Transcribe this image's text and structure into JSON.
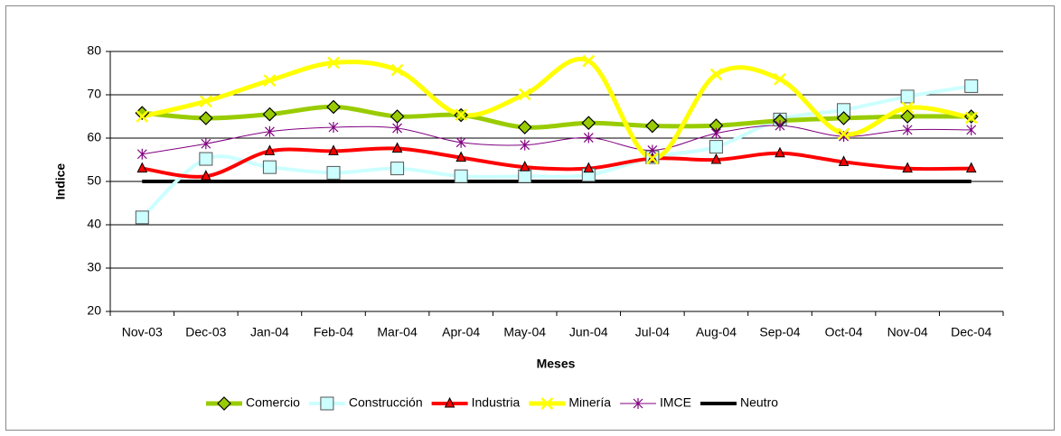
{
  "chart_data": {
    "type": "line",
    "smooth": true,
    "x_label": "Meses",
    "y_label": "Indice",
    "categories": [
      "Nov-03",
      "Dec-03",
      "Jan-04",
      "Feb-04",
      "Mar-04",
      "Apr-04",
      "May-04",
      "Jun-04",
      "Jul-04",
      "Aug-04",
      "Sep-04",
      "Oct-04",
      "Nov-04",
      "Dec-04"
    ],
    "ylim": [
      20,
      80
    ],
    "yticks": [
      20,
      30,
      40,
      50,
      60,
      70,
      80
    ],
    "grid": true,
    "legend": "bottom",
    "series": [
      {
        "name": "Comercio",
        "color": "#99cc00",
        "marker": "diamond",
        "marker_fill": "#99cc00",
        "width": 5,
        "values": [
          65.8,
          64.6,
          65.5,
          67.2,
          65,
          65.3,
          62.5,
          63.5,
          62.8,
          62.9,
          64,
          64.6,
          65,
          65
        ]
      },
      {
        "name": "Construcción",
        "color": "#ccffff",
        "marker": "square",
        "marker_fill": "#ccffff",
        "width": 4,
        "values": [
          41.7,
          55.2,
          53.3,
          52,
          53,
          51.2,
          51.2,
          51.5,
          55.6,
          58,
          64.3,
          66.5,
          69.6,
          72
        ]
      },
      {
        "name": "Industria",
        "color": "#ff0000",
        "marker": "triangle",
        "marker_fill": "#ff0000",
        "width": 4,
        "values": [
          53,
          51.2,
          57,
          57,
          57.6,
          55.5,
          53.3,
          53,
          55.3,
          55,
          56.5,
          54.5,
          53,
          53
        ]
      },
      {
        "name": "Minería",
        "color": "#ffff00",
        "marker": "x",
        "marker_fill": "#ffff00",
        "width": 5,
        "values": [
          65,
          68.5,
          73.3,
          77.4,
          75.7,
          65.4,
          70.1,
          77.8,
          55.3,
          74.7,
          73.6,
          61,
          67,
          64.7
        ]
      },
      {
        "name": "IMCE",
        "color": "#800080",
        "marker": "star",
        "marker_fill": "#800080",
        "width": 1,
        "values": [
          56.3,
          58.7,
          61.5,
          62.5,
          62.3,
          59,
          58.4,
          60.1,
          57.2,
          61.1,
          62.9,
          60.4,
          61.9,
          61.9
        ]
      },
      {
        "name": "Neutro",
        "color": "#000000",
        "marker": "none",
        "marker_fill": "#000000",
        "width": 4,
        "values": [
          50,
          50,
          50,
          50,
          50,
          50,
          50,
          50,
          50,
          50,
          50,
          50,
          50,
          50
        ]
      }
    ]
  }
}
